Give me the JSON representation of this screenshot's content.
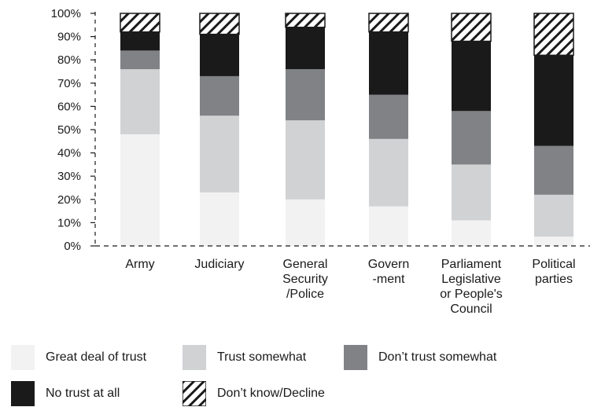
{
  "chart_data": {
    "type": "bar",
    "stacked": true,
    "categories": [
      [
        "Army"
      ],
      [
        "Judiciary"
      ],
      [
        "General",
        "Security",
        "/Police"
      ],
      [
        "Govern",
        "-ment"
      ],
      [
        "Parliament",
        "Legislative",
        "or People's",
        "Council"
      ],
      [
        "Political",
        "parties"
      ]
    ],
    "series": [
      {
        "name": "Great deal of trust",
        "color": "#f2f2f2",
        "values": [
          48,
          23,
          20,
          17,
          11,
          4
        ]
      },
      {
        "name": "Trust somewhat",
        "color": "#d1d2d4",
        "values": [
          28,
          33,
          34,
          29,
          24,
          18
        ]
      },
      {
        "name": "Don’t trust somewhat",
        "color": "#808285",
        "values": [
          8,
          17,
          22,
          19,
          23,
          21
        ]
      },
      {
        "name": "No trust at all",
        "color": "#1a1a1a",
        "values": [
          8,
          18,
          18,
          27,
          30,
          39
        ]
      },
      {
        "name": "Don’t know/Decline",
        "color": "hatch",
        "values": [
          8,
          9,
          6,
          8,
          12,
          18
        ]
      }
    ],
    "yticks": [
      "0%",
      "10%",
      "20%",
      "30%",
      "40%",
      "50%",
      "60%",
      "70%",
      "80%",
      "90%",
      "100%"
    ],
    "ylim": [
      0,
      100
    ],
    "grid": false,
    "legend_position": "bottom"
  }
}
